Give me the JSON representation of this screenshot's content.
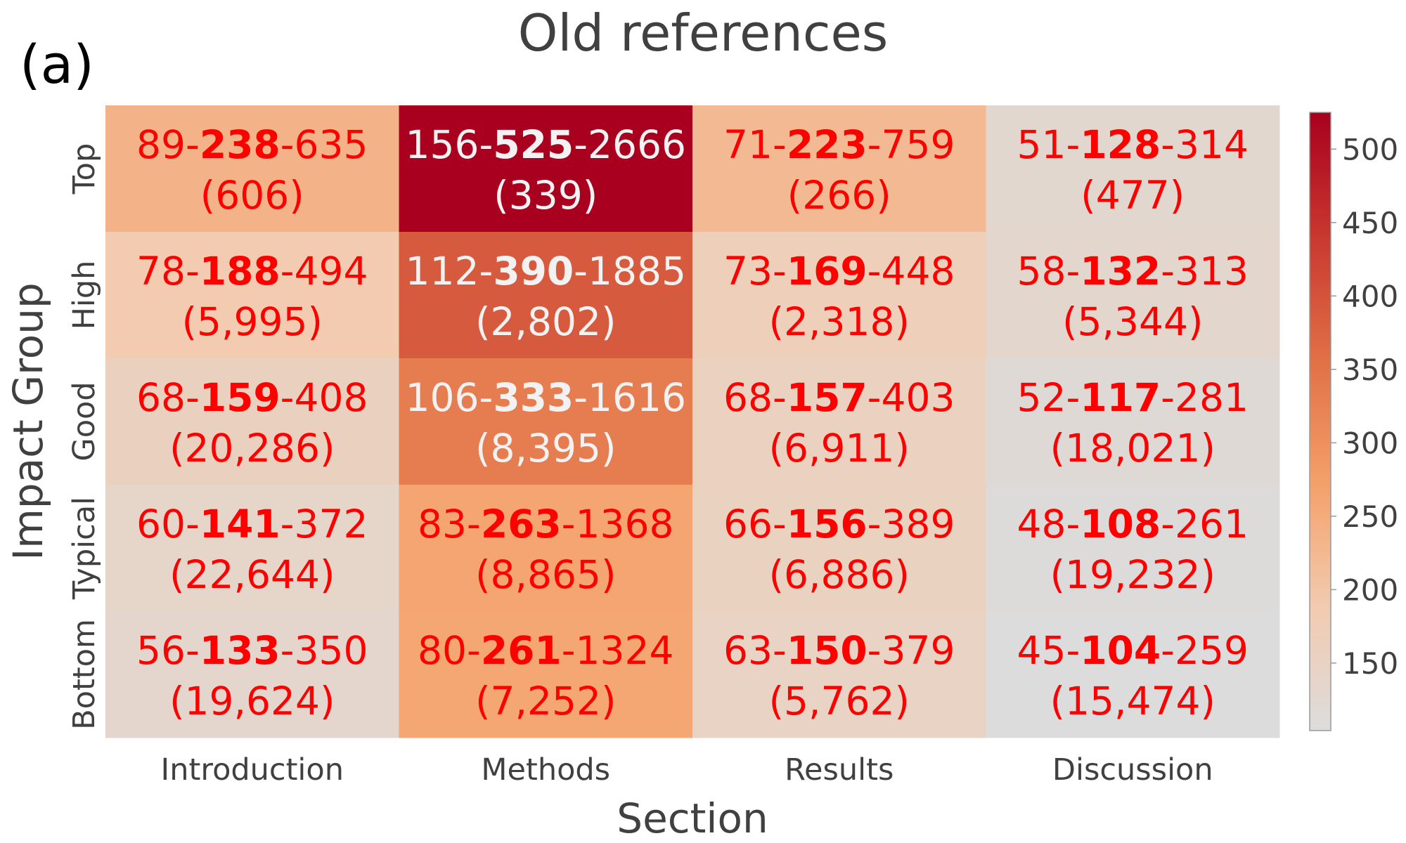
{
  "panel_label": "(a)",
  "chart_data": {
    "type": "heatmap",
    "title": "Old references",
    "xlabel": "Section",
    "ylabel": "Impact Group",
    "x_categories": [
      "Introduction",
      "Methods",
      "Results",
      "Discussion"
    ],
    "y_categories": [
      "Top",
      "High",
      "Good",
      "Typical",
      "Bottom"
    ],
    "values": [
      [
        238,
        525,
        223,
        128
      ],
      [
        188,
        390,
        169,
        132
      ],
      [
        159,
        333,
        157,
        117
      ],
      [
        141,
        263,
        156,
        108
      ],
      [
        133,
        261,
        150,
        104
      ]
    ],
    "low": [
      [
        89,
        156,
        71,
        51
      ],
      [
        78,
        112,
        73,
        58
      ],
      [
        68,
        106,
        68,
        52
      ],
      [
        60,
        83,
        66,
        48
      ],
      [
        56,
        80,
        63,
        45
      ]
    ],
    "high": [
      [
        635,
        2666,
        759,
        314
      ],
      [
        494,
        1885,
        448,
        313
      ],
      [
        408,
        1616,
        403,
        281
      ],
      [
        372,
        1368,
        389,
        261
      ],
      [
        350,
        1324,
        379,
        259
      ]
    ],
    "counts": [
      [
        "(606)",
        "(339)",
        "(266)",
        "(477)"
      ],
      [
        "(5,995)",
        "(2,802)",
        "(2,318)",
        "(5,344)"
      ],
      [
        "(20,286)",
        "(8,395)",
        "(6,911)",
        "(18,021)"
      ],
      [
        "(22,644)",
        "(8,865)",
        "(6,886)",
        "(19,232)"
      ],
      [
        "(19,624)",
        "(7,252)",
        "(5,762)",
        "(15,474)"
      ]
    ],
    "colorbar": {
      "min": 104,
      "max": 525,
      "ticks": [
        150,
        200,
        250,
        300,
        350,
        400,
        450,
        500
      ],
      "colors": [
        "#dcdcdc",
        "#f2cbb0",
        "#f4a06a",
        "#e07046",
        "#c8382f",
        "#a8001e"
      ]
    },
    "text_colors": {
      "dark_cell": "#f2f2f2",
      "light_cell": "#ff0000"
    },
    "grid": false
  }
}
